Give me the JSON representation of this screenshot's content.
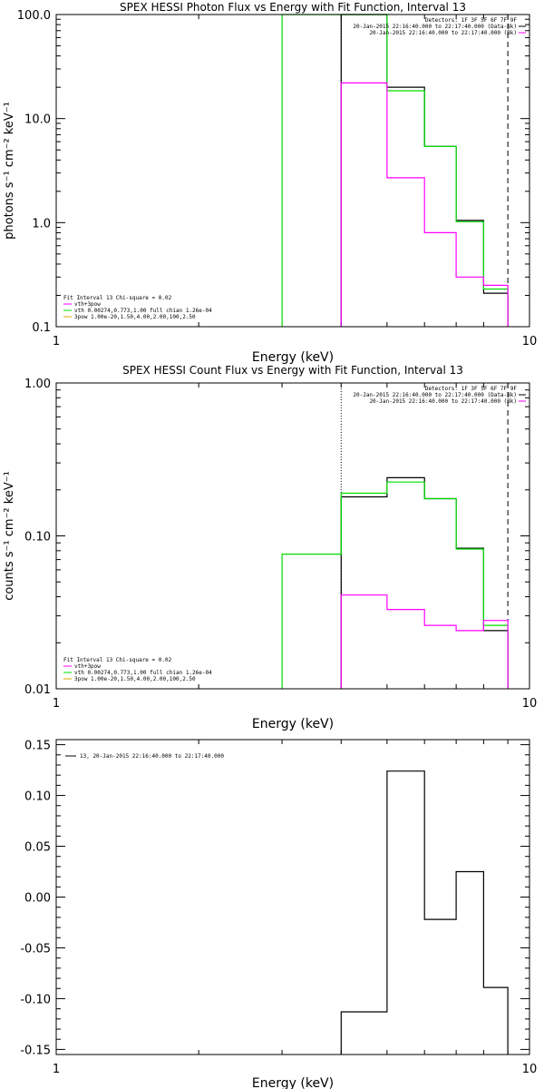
{
  "chart_data": [
    {
      "type": "line",
      "title": "SPEX HESSI Photon Flux vs Energy with Fit Function, Interval 13",
      "xlabel": "Energy (keV)",
      "ylabel": "photons s⁻¹ cm⁻² keV⁻¹",
      "xscale": "log",
      "yscale": "log",
      "xlim": [
        1,
        10
      ],
      "ylim": [
        0.1,
        100
      ],
      "x_ticks": [
        {
          "v": 1,
          "label": "1"
        },
        {
          "v": 10,
          "label": "10"
        }
      ],
      "y_ticks": [
        {
          "v": 0.1,
          "label": "0.1"
        },
        {
          "v": 1,
          "label": "1.0"
        },
        {
          "v": 10,
          "label": "10.0"
        },
        {
          "v": 100,
          "label": "100.0"
        }
      ],
      "legend_topright": [
        "Detectors: 1F 3F 5F 6F 7F 9F",
        "20-Jan-2015 22:16:40.000 to 22:17:40.000 (Data-Bk)",
        "20-Jan-2015 22:16:40.000 to 22:17:40.000 (Bk)"
      ],
      "legend_bottomleft": [
        "Fit Interval 13   Chi-square = 0.02",
        "vth+3pow",
        "vth 0.00274,0.773,1.00  full chian 1.26e-04",
        "3pow 1.00e-20,1.50,4.00,2.00,100,2.50"
      ],
      "vlines": [
        {
          "x": 4.0,
          "style": "dotted"
        },
        {
          "x": 9.0,
          "style": "dashed"
        }
      ],
      "series": [
        {
          "color": "#000000",
          "edges": [
            4.0,
            5.0,
            6.0,
            7.0,
            8.0,
            9.0
          ],
          "values": [
            100,
            20,
            5.4,
            1.05,
            0.21
          ]
        },
        {
          "color": "#00dd00",
          "edges": [
            3.0,
            4.0,
            5.0,
            6.0,
            7.0,
            8.0,
            9.0
          ],
          "values": [
            100,
            100,
            18.5,
            5.4,
            1.02,
            0.23
          ]
        },
        {
          "color": "#ff00ff",
          "edges": [
            4.0,
            5.0,
            6.0,
            7.0,
            8.0,
            9.0
          ],
          "values": [
            22,
            2.7,
            0.8,
            0.3,
            0.25
          ]
        }
      ]
    },
    {
      "type": "line",
      "title": "SPEX HESSI Count Flux vs Energy with Fit Function, Interval 13",
      "xlabel": "Energy (keV)",
      "ylabel": "counts s⁻¹ cm⁻² keV⁻¹",
      "xscale": "log",
      "yscale": "log",
      "xlim": [
        1,
        10
      ],
      "ylim": [
        0.01,
        1
      ],
      "x_ticks": [
        {
          "v": 1,
          "label": "1"
        },
        {
          "v": 10,
          "label": "10"
        }
      ],
      "y_ticks": [
        {
          "v": 0.01,
          "label": "0.01"
        },
        {
          "v": 0.1,
          "label": "0.10"
        },
        {
          "v": 1,
          "label": "1.00"
        }
      ],
      "legend_topright": [
        "Detectors: 1F 3F 5F 6F 7F 9F",
        "20-Jan-2015 22:16:40.000 to 22:17:40.000 (Data-Bk)",
        "20-Jan-2015 22:16:40.000 to 22:17:40.000 (Bk)"
      ],
      "legend_bottomleft": [
        "Fit Interval 13   Chi-square = 0.02",
        "vth+3pow",
        "vth 0.00274,0.773,1.00  full chian 1.26e-04",
        "3pow 1.00e-20,1.50,4.00,2.00,100,2.50"
      ],
      "vlines": [
        {
          "x": 4.0,
          "style": "dotted"
        },
        {
          "x": 9.0,
          "style": "dashed"
        }
      ],
      "series": [
        {
          "color": "#000000",
          "edges": [
            4.0,
            5.0,
            6.0,
            7.0,
            8.0,
            9.0
          ],
          "values": [
            0.18,
            0.24,
            0.175,
            0.083,
            0.024
          ]
        },
        {
          "color": "#00dd00",
          "edges": [
            3.0,
            4.0,
            5.0,
            6.0,
            7.0,
            8.0,
            9.0
          ],
          "values": [
            0.076,
            0.19,
            0.225,
            0.175,
            0.082,
            0.026
          ]
        },
        {
          "color": "#ff00ff",
          "edges": [
            4.0,
            5.0,
            6.0,
            7.0,
            8.0,
            9.0
          ],
          "values": [
            0.041,
            0.033,
            0.026,
            0.024,
            0.028
          ]
        }
      ]
    },
    {
      "type": "line",
      "title": "",
      "xlabel": "Energy (keV)",
      "ylabel": "",
      "xscale": "log",
      "yscale": "linear",
      "xlim": [
        1,
        10
      ],
      "ylim": [
        -0.155,
        0.155
      ],
      "x_ticks": [
        {
          "v": 1,
          "label": "1"
        },
        {
          "v": 10,
          "label": "10"
        }
      ],
      "y_ticks": [
        {
          "v": -0.15,
          "label": "-0.15"
        },
        {
          "v": -0.1,
          "label": "-0.10"
        },
        {
          "v": -0.05,
          "label": "-0.05"
        },
        {
          "v": 0,
          "label": "0.00"
        },
        {
          "v": 0.05,
          "label": "0.05"
        },
        {
          "v": 0.1,
          "label": "0.10"
        },
        {
          "v": 0.15,
          "label": "0.15"
        }
      ],
      "legend_topleft": [
        "13, 20-Jan-2015 22:16:40.000 to 22:17:40.000"
      ],
      "vlines": [],
      "series": [
        {
          "color": "#000000",
          "edges": [
            4.0,
            5.0,
            6.0,
            7.0,
            8.0,
            9.0
          ],
          "values": [
            -0.113,
            0.124,
            -0.022,
            0.025,
            -0.089
          ]
        }
      ]
    }
  ]
}
